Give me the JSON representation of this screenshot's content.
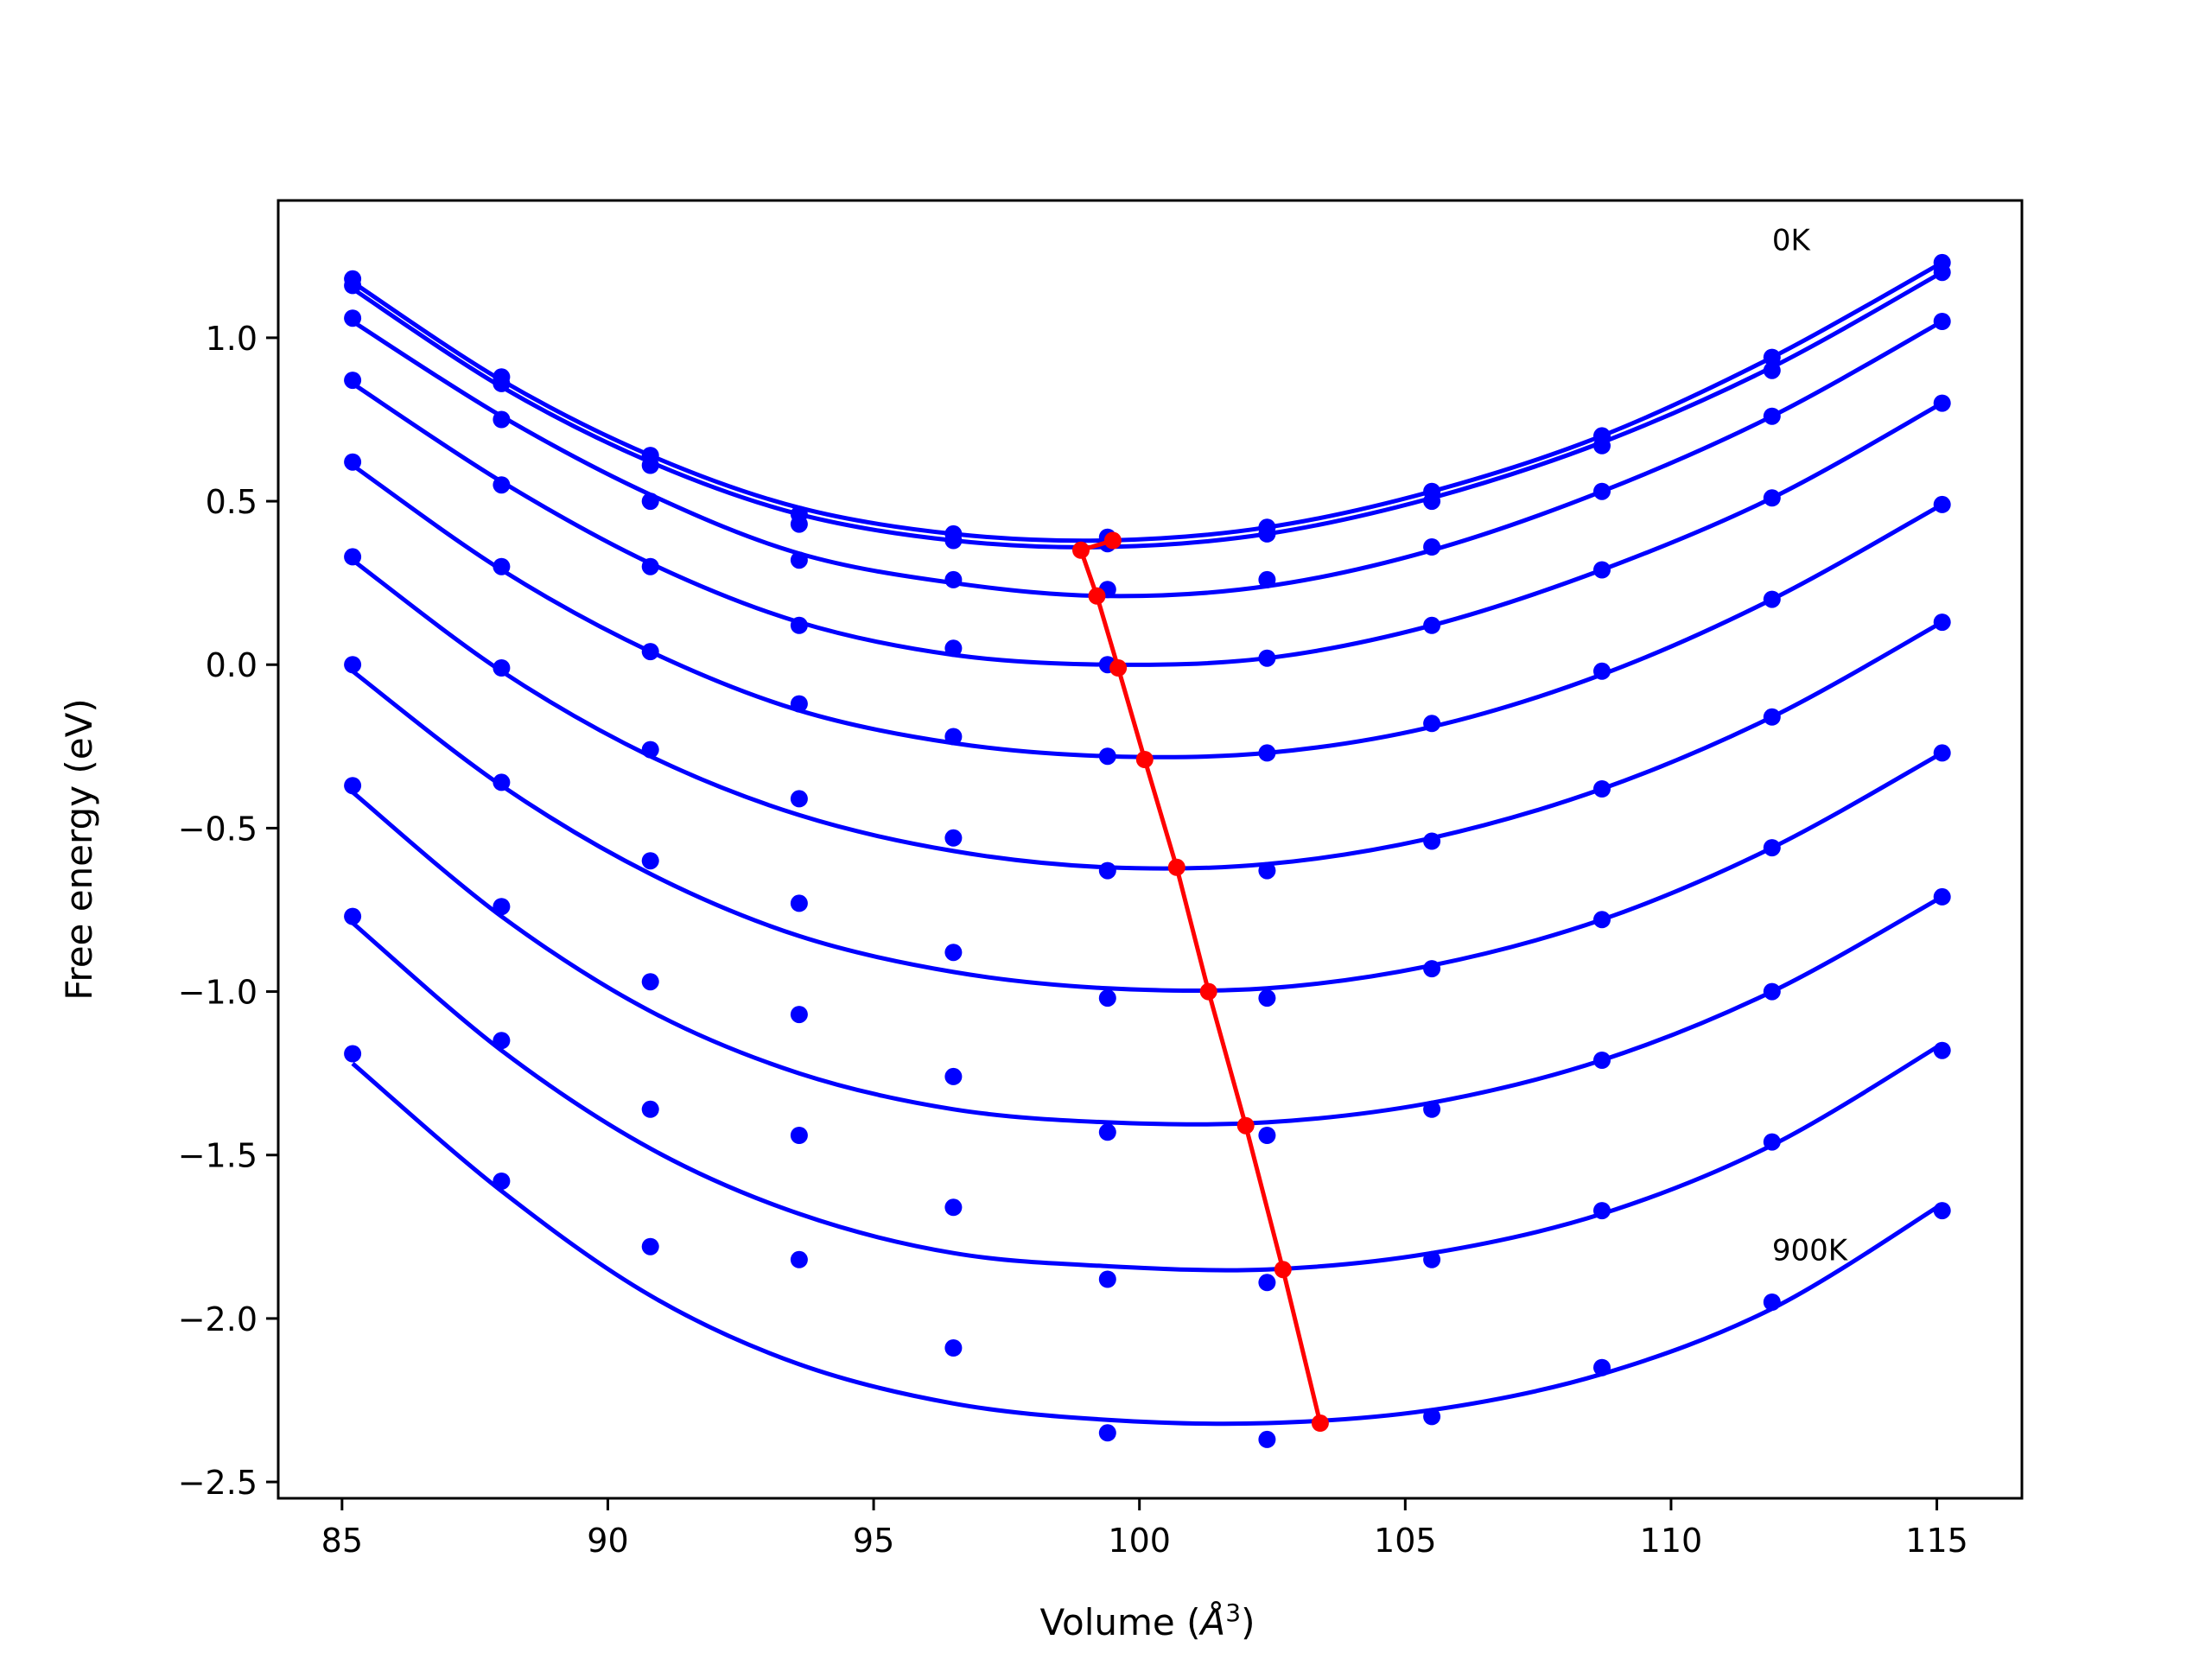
{
  "chart_data": {
    "type": "line",
    "title": "",
    "xlabel": "Volume (",
    "xlabel_symbol": "Å",
    "xlabel_exponent": "3",
    "xlabel_close": ")",
    "ylabel": "Free energy (eV)",
    "xlim": [
      83.8,
      116.6
    ],
    "ylim": [
      -2.55,
      1.42
    ],
    "xticks": [
      85,
      90,
      95,
      100,
      105,
      110,
      115
    ],
    "xtick_labels": [
      "85",
      "90",
      "95",
      "100",
      "105",
      "110",
      "115"
    ],
    "yticks": [
      1.0,
      0.5,
      0.0,
      -0.5,
      -1.0,
      -1.5,
      -2.0,
      -2.5
    ],
    "ytick_labels": [
      "1.0",
      "0.5",
      "0.0",
      "−0.5",
      "−1.0",
      "−1.5",
      "−2.0",
      "−2.5"
    ],
    "grid": false,
    "colors": {
      "series": "#0000ff",
      "minimum_path": "#ff0000",
      "frame": "#000000"
    },
    "annotations": [
      {
        "text": "0K",
        "x": 111.9,
        "y": 1.3
      },
      {
        "text": "900K",
        "x": 111.9,
        "y": -1.79
      }
    ],
    "volumes": [
      85.2,
      88.0,
      90.8,
      93.6,
      96.5,
      99.4,
      102.4,
      105.5,
      108.7,
      111.9,
      115.1
    ],
    "series": [
      {
        "points": [
          1.18,
          0.88,
          0.64,
          0.46,
          0.4,
          0.39,
          0.42,
          0.53,
          0.7,
          0.94,
          1.23
        ],
        "fit_points": [
          1.17,
          0.87,
          0.64,
          0.48,
          0.4,
          0.38,
          0.42,
          0.53,
          0.7,
          0.94,
          1.23
        ],
        "min": [
          99.5,
          0.38
        ]
      },
      {
        "points": [
          1.16,
          0.86,
          0.61,
          0.43,
          0.38,
          0.37,
          0.4,
          0.5,
          0.67,
          0.9,
          1.2
        ],
        "fit_points": [
          1.15,
          0.85,
          0.62,
          0.46,
          0.38,
          0.36,
          0.4,
          0.51,
          0.68,
          0.91,
          1.2
        ],
        "min": [
          98.9,
          0.35
        ]
      },
      {
        "points": [
          1.06,
          0.75,
          0.5,
          0.32,
          0.26,
          0.23,
          0.26,
          0.36,
          0.53,
          0.76,
          1.05
        ],
        "fit_points": [
          1.05,
          0.76,
          0.52,
          0.34,
          0.25,
          0.21,
          0.24,
          0.35,
          0.53,
          0.76,
          1.05
        ],
        "min": [
          99.2,
          0.21
        ]
      },
      {
        "points": [
          0.87,
          0.55,
          0.3,
          0.12,
          0.05,
          0.0,
          0.02,
          0.12,
          0.29,
          0.51,
          0.8
        ],
        "fit_points": [
          0.86,
          0.56,
          0.31,
          0.13,
          0.03,
          0.0,
          0.02,
          0.12,
          0.29,
          0.51,
          0.8
        ],
        "min": [
          99.6,
          -0.01
        ]
      },
      {
        "points": [
          0.62,
          0.3,
          0.04,
          -0.12,
          -0.22,
          -0.28,
          -0.27,
          -0.18,
          -0.02,
          0.2,
          0.49
        ],
        "fit_points": [
          0.61,
          0.29,
          0.04,
          -0.14,
          -0.24,
          -0.28,
          -0.27,
          -0.19,
          -0.03,
          0.2,
          0.49
        ],
        "min": [
          100.1,
          -0.29
        ]
      },
      {
        "points": [
          0.33,
          -0.01,
          -0.26,
          -0.41,
          -0.53,
          -0.63,
          -0.63,
          -0.54,
          -0.38,
          -0.16,
          0.13
        ],
        "fit_points": [
          0.32,
          -0.02,
          -0.28,
          -0.46,
          -0.57,
          -0.62,
          -0.61,
          -0.53,
          -0.38,
          -0.16,
          0.13
        ],
        "min": [
          100.7,
          -0.62
        ]
      },
      {
        "points": [
          0.0,
          -0.36,
          -0.6,
          -0.73,
          -0.88,
          -1.02,
          -1.02,
          -0.93,
          -0.78,
          -0.56,
          -0.27
        ],
        "fit_points": [
          -0.02,
          -0.37,
          -0.64,
          -0.83,
          -0.94,
          -0.99,
          -0.99,
          -0.92,
          -0.78,
          -0.56,
          -0.27
        ],
        "min": [
          101.3,
          -1.0
        ]
      },
      {
        "points": [
          -0.37,
          -0.74,
          -0.97,
          -1.07,
          -1.26,
          -1.43,
          -1.44,
          -1.36,
          -1.21,
          -1.0,
          -0.71
        ],
        "fit_points": [
          -0.39,
          -0.77,
          -1.06,
          -1.25,
          -1.36,
          -1.4,
          -1.4,
          -1.34,
          -1.21,
          -1.0,
          -0.71
        ],
        "min": [
          102.0,
          -1.41
        ]
      },
      {
        "points": [
          -0.77,
          -1.15,
          -1.36,
          -1.44,
          -1.66,
          -1.88,
          -1.89,
          -1.82,
          -1.67,
          -1.46,
          -1.18
        ],
        "fit_points": [
          -0.79,
          -1.18,
          -1.48,
          -1.68,
          -1.8,
          -1.84,
          -1.85,
          -1.8,
          -1.68,
          -1.47,
          -1.16
        ],
        "min": [
          102.7,
          -1.85
        ]
      },
      {
        "points": [
          -1.19,
          -1.58,
          -1.78,
          -1.82,
          -2.09,
          -2.35,
          -2.37,
          -2.3,
          -2.15,
          -1.95,
          -1.67
        ],
        "fit_points": [
          -1.22,
          -1.61,
          -1.93,
          -2.14,
          -2.26,
          -2.31,
          -2.32,
          -2.28,
          -2.17,
          -1.97,
          -1.65
        ],
        "min": [
          103.4,
          -2.32
        ]
      }
    ]
  }
}
